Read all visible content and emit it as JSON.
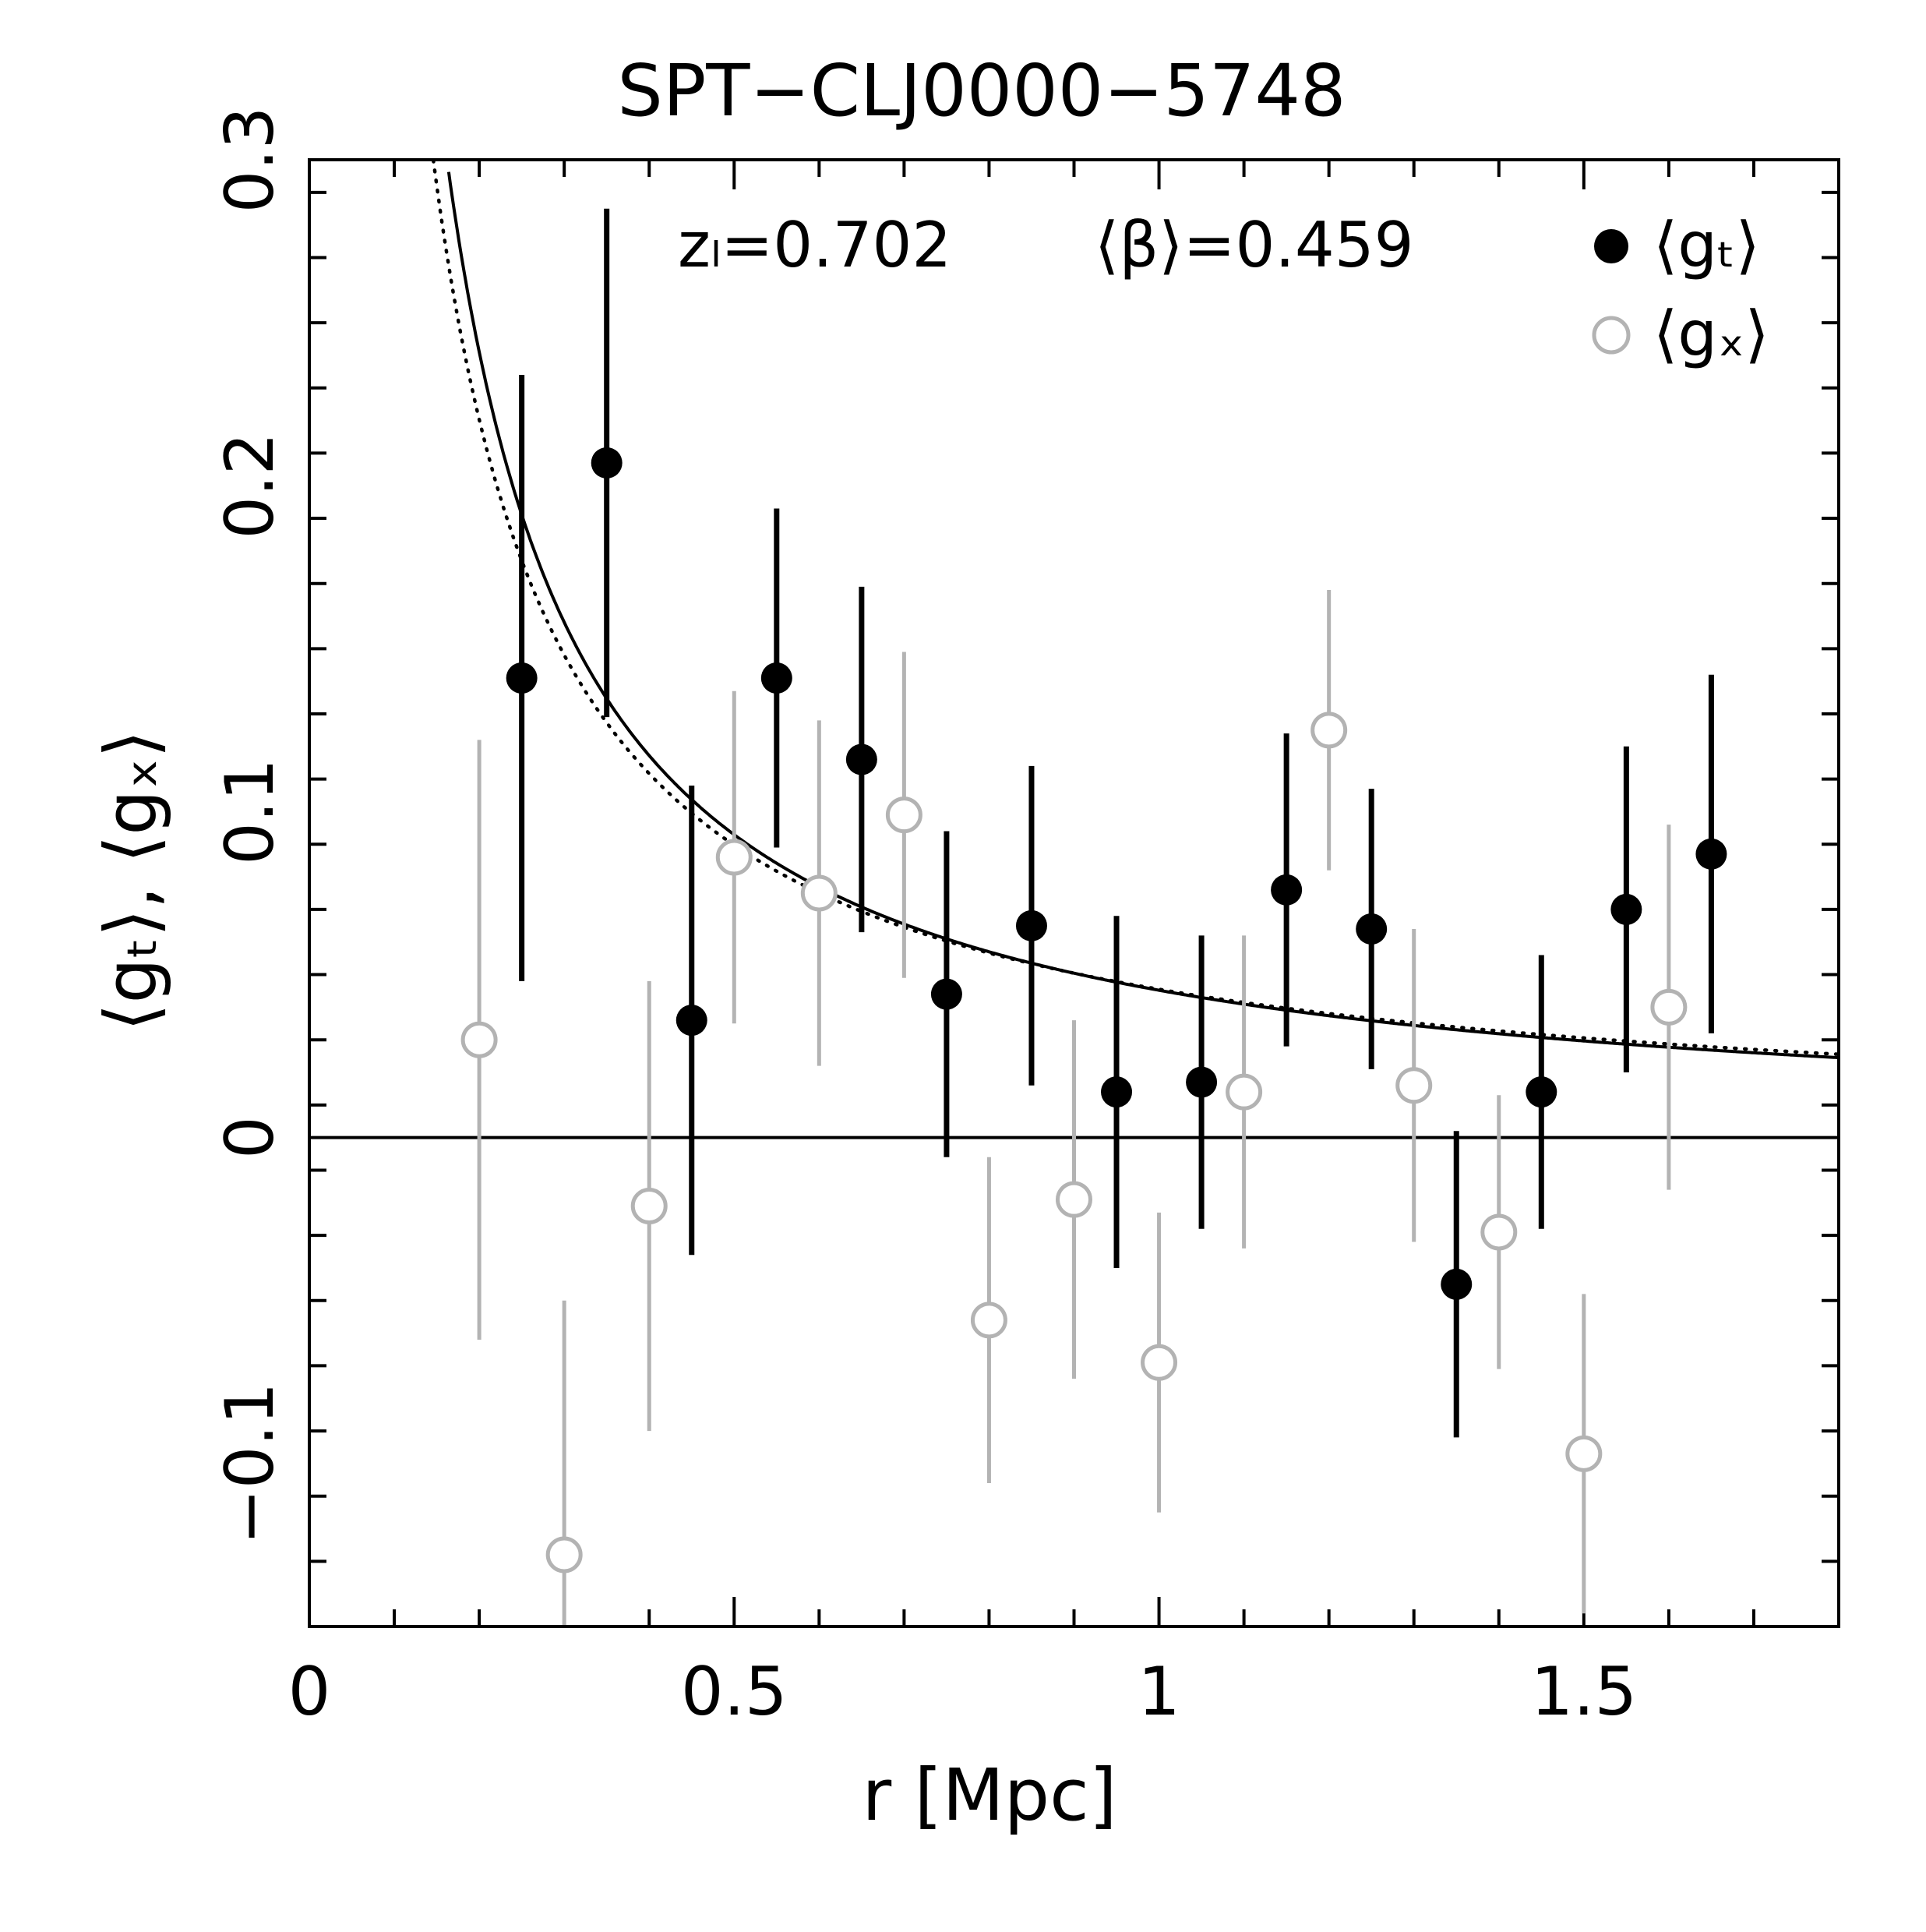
{
  "chart_data": {
    "type": "scatter",
    "title": "SPT−CLJ0000−5748",
    "xlabel": "r [Mpc]",
    "ylabel": "⟨gₜ⟩, ⟨gₓ⟩",
    "xlim": [
      0,
      1.8
    ],
    "ylim": [
      -0.15,
      0.3
    ],
    "x_ticks": [
      0,
      0.5,
      1,
      1.5
    ],
    "x_tick_labels": [
      "0",
      "0.5",
      "1",
      "1.5"
    ],
    "y_ticks": [
      -0.1,
      0,
      0.1,
      0.2,
      0.3
    ],
    "y_tick_labels": [
      "−0.1",
      "0",
      "0.1",
      "0.2",
      "0.3"
    ],
    "annotations": {
      "z_l": "zₗ=0.702",
      "beta": "⟨β⟩=0.459"
    },
    "legend": {
      "position": "top-right",
      "gt_label": "⟨gₜ⟩",
      "gx_label": "⟨gₓ⟩"
    },
    "series": [
      {
        "name": "⟨gₜ⟩",
        "color": "#000000",
        "marker": "filled-circle",
        "x": [
          0.25,
          0.35,
          0.45,
          0.55,
          0.65,
          0.75,
          0.85,
          0.95,
          1.05,
          1.15,
          1.25,
          1.35,
          1.45,
          1.55,
          1.65
        ],
        "y": [
          0.141,
          0.207,
          0.036,
          0.141,
          0.116,
          0.044,
          0.065,
          0.014,
          0.017,
          0.076,
          0.064,
          -0.045,
          0.014,
          0.07,
          0.087
        ],
        "err": [
          0.093,
          0.078,
          0.072,
          0.052,
          0.053,
          0.05,
          0.049,
          0.054,
          0.045,
          0.048,
          0.043,
          0.047,
          0.042,
          0.05,
          0.055
        ]
      },
      {
        "name": "⟨gₓ⟩",
        "color": "#b3b3b3",
        "marker": "open-circle",
        "x": [
          0.2,
          0.3,
          0.4,
          0.5,
          0.6,
          0.7,
          0.8,
          0.9,
          1.0,
          1.1,
          1.2,
          1.3,
          1.4,
          1.5,
          1.6
        ],
        "y": [
          0.03,
          -0.128,
          -0.021,
          0.086,
          0.075,
          0.099,
          -0.056,
          -0.019,
          -0.069,
          0.014,
          0.125,
          0.016,
          -0.029,
          -0.097,
          0.04
        ],
        "err": [
          0.092,
          0.078,
          0.069,
          0.051,
          0.053,
          0.05,
          0.05,
          0.055,
          0.046,
          0.048,
          0.043,
          0.048,
          0.042,
          0.049,
          0.056
        ]
      }
    ],
    "model_curves": [
      {
        "name": "solid",
        "style": "solid",
        "color": "#000000",
        "amplitude": 0.0452,
        "exponent": 1.04
      },
      {
        "name": "dotted",
        "style": "dotted",
        "color": "#000000",
        "amplitude": 0.0455,
        "exponent": 0.98
      }
    ],
    "reference_line": {
      "y": 0
    }
  }
}
